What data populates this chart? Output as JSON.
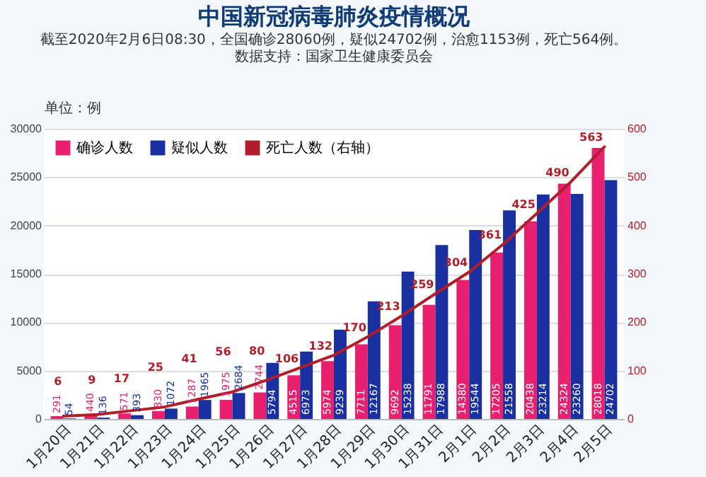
{
  "chart_data": {
    "type": "bar",
    "title": "中国新冠病毒肺炎疫情概况",
    "subtitle": "截至2020年2月6日08:30，全国确诊28060例，疑似24702例，治愈1153例，死亡564例。",
    "ylabel": "单位：例",
    "annotations": [
      "数据支持：国家卫生健康委员会"
    ],
    "categories": [
      "1月20日",
      "1月21日",
      "1月22日",
      "1月23日",
      "1月24日",
      "1月25日",
      "1月26日",
      "1月27日",
      "1月28日",
      "1月29日",
      "1月30日",
      "1月31日",
      "2月1日",
      "2月2日",
      "2月3日",
      "2月4日",
      "2月5日"
    ],
    "series": [
      {
        "name": "确诊人数",
        "color": "#e8206e",
        "values": [
          291,
          440,
          571,
          830,
          1287,
          1975,
          2744,
          4515,
          5974,
          7711,
          9692,
          11791,
          14380,
          17205,
          20438,
          24324,
          28018
        ]
      },
      {
        "name": "疑似人数",
        "color": "#1a2fa0",
        "values": [
          54,
          136,
          393,
          1072,
          1965,
          2684,
          5794,
          6973,
          9239,
          12167,
          15238,
          17988,
          19544,
          21558,
          23214,
          23260,
          24702
        ]
      },
      {
        "name": "死亡人数（右轴）",
        "color": "#b01e2a",
        "type": "line",
        "axis": "y2",
        "values": [
          6,
          9,
          17,
          25,
          41,
          56,
          80,
          106,
          132,
          170,
          213,
          259,
          304,
          361,
          425,
          490,
          563
        ]
      }
    ],
    "ylim": [
      0,
      30000
    ],
    "yticks": [
      0,
      5000,
      10000,
      15000,
      20000,
      25000,
      30000
    ],
    "y2lim": [
      0,
      600
    ],
    "y2ticks": [
      0,
      100,
      200,
      300,
      400,
      500,
      600
    ],
    "grid": "y",
    "legend": "top left",
    "data_labels": true
  }
}
